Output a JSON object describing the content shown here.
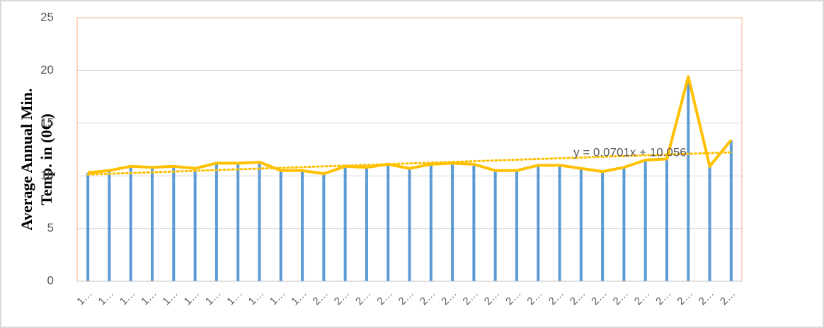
{
  "chart_data": {
    "type": "bar",
    "y_label_lines": [
      "Average Annual Min.",
      "Temp. in (0C)"
    ],
    "categories": [
      "1…",
      "1…",
      "1…",
      "1…",
      "1…",
      "1…",
      "1…",
      "1…",
      "1…",
      "1…",
      "1…",
      "2…",
      "2…",
      "2…",
      "2…",
      "2…",
      "2…",
      "2…",
      "2…",
      "2…",
      "2…",
      "2…",
      "2…",
      "2…",
      "2…",
      "2…",
      "2…",
      "2…",
      "2…",
      "2…",
      "2…"
    ],
    "values": [
      10.3,
      10.5,
      10.9,
      10.8,
      10.9,
      10.7,
      11.2,
      11.2,
      11.3,
      10.5,
      10.5,
      10.2,
      10.9,
      10.8,
      11.1,
      10.7,
      11.1,
      11.2,
      11.1,
      10.5,
      10.5,
      11.0,
      11.0,
      10.7,
      10.4,
      10.8,
      11.5,
      11.6,
      19.4,
      10.9,
      13.4
    ],
    "color": "#5b9bd5",
    "line_color": "#ffc000",
    "trendline": {
      "label": "y = 0.0701x + 10.056",
      "slope": 0.0701,
      "intercept": 10.056
    },
    "ylim": [
      0,
      25
    ],
    "yticks": [
      0,
      5,
      10,
      15,
      20,
      25
    ],
    "grid": true
  }
}
